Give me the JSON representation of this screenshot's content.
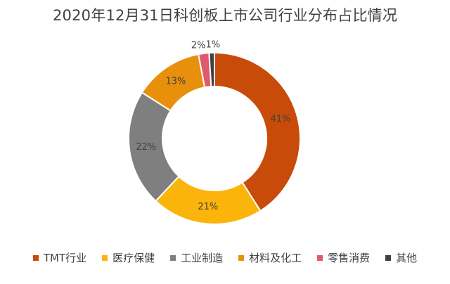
{
  "chart_data": {
    "type": "pie",
    "donut": true,
    "title": "2020年12月31日科创板上市公司行业分布占比情况",
    "legend_position": "bottom",
    "slices": [
      {
        "label": "TMT行业",
        "value": 41,
        "value_label": "41%",
        "color": "#C84B0A"
      },
      {
        "label": "医疗保健",
        "value": 21,
        "value_label": "21%",
        "color": "#FBB40A"
      },
      {
        "label": "工业制造",
        "value": 22,
        "value_label": "22%",
        "color": "#7F7F7F"
      },
      {
        "label": "材料及化工",
        "value": 13,
        "value_label": "13%",
        "color": "#E8900C"
      },
      {
        "label": "零售消费",
        "value": 2,
        "value_label": "2%",
        "color": "#E05A6E"
      },
      {
        "label": "其他",
        "value": 1,
        "value_label": "1%",
        "color": "#404040"
      }
    ]
  }
}
